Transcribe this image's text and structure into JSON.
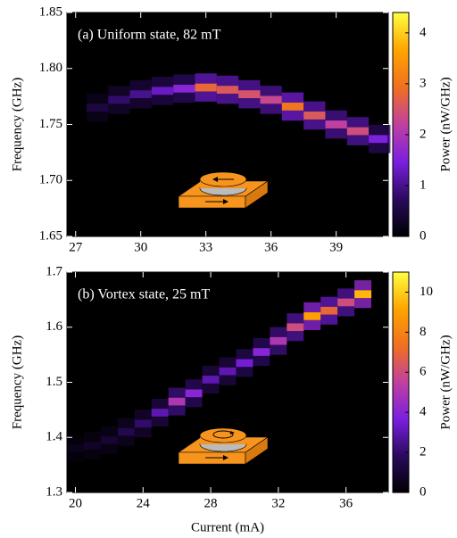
{
  "chart_data": [
    {
      "type": "heatmap",
      "title": "(a) Uniform state, 82 mT",
      "ylabel": "Frequency (GHz)",
      "clabel": "Power (nW/GHz)",
      "x": [
        28,
        29,
        30,
        31,
        32,
        33,
        34,
        35,
        36,
        37,
        38,
        39,
        40,
        41
      ],
      "y": [
        1.765,
        1.772,
        1.777,
        1.78,
        1.782,
        1.783,
        1.781,
        1.777,
        1.772,
        1.766,
        1.758,
        1.75,
        1.744,
        1.737
      ],
      "values": [
        0.5,
        0.8,
        1.0,
        1.3,
        1.6,
        2.8,
        2.6,
        2.5,
        2.3,
        3.0,
        2.6,
        2.2,
        2.4,
        1.5
      ],
      "xlim": [
        26.6,
        41.4
      ],
      "xticks": [
        27,
        30,
        33,
        36,
        39
      ],
      "ylim": [
        1.65,
        1.85
      ],
      "yticks": [
        {
          "value": 1.65,
          "label": "1.65"
        },
        {
          "value": 1.7,
          "label": "1.70"
        },
        {
          "value": 1.75,
          "label": "1.75"
        },
        {
          "value": 1.8,
          "label": "1.80"
        },
        {
          "value": 1.85,
          "label": "1.85"
        }
      ],
      "clim": [
        0,
        4.4
      ],
      "cticks": [
        0,
        1,
        2,
        3,
        4
      ],
      "colormap": [
        "#000000",
        "#2a0a5e",
        "#7b1fe0",
        "#c040a0",
        "#f07020",
        "#ffa500",
        "#ffff40"
      ]
    },
    {
      "type": "heatmap",
      "title": "(b) Vortex state, 25 mT",
      "ylabel": "Frequency (GHz)",
      "clabel": "Power (nW/GHz)",
      "xlabel": "Current (mA)",
      "x": [
        20,
        21,
        22,
        23,
        24,
        25,
        26,
        27,
        28,
        29,
        30,
        31,
        32,
        33,
        34,
        35,
        36,
        37
      ],
      "y": [
        1.38,
        1.385,
        1.395,
        1.41,
        1.425,
        1.445,
        1.465,
        1.48,
        1.505,
        1.52,
        1.535,
        1.555,
        1.575,
        1.6,
        1.62,
        1.63,
        1.645,
        1.66
      ],
      "values": [
        0.5,
        0.8,
        1,
        1.5,
        2,
        3,
        5,
        4,
        3,
        3,
        3.5,
        4,
        5,
        6,
        9,
        7,
        6,
        9.5
      ],
      "xlim": [
        19.5,
        38.5
      ],
      "xticks": [
        20,
        24,
        28,
        32,
        36
      ],
      "ylim": [
        1.3,
        1.7
      ],
      "yticks": [
        1.3,
        1.4,
        1.5,
        1.6,
        1.7
      ],
      "clim": [
        0,
        11
      ],
      "cticks": [
        0,
        2,
        4,
        6,
        8,
        10
      ],
      "colormap": [
        "#000000",
        "#2a0a5e",
        "#7b1fe0",
        "#c040a0",
        "#f07020",
        "#ffa500",
        "#ffff40"
      ]
    }
  ]
}
